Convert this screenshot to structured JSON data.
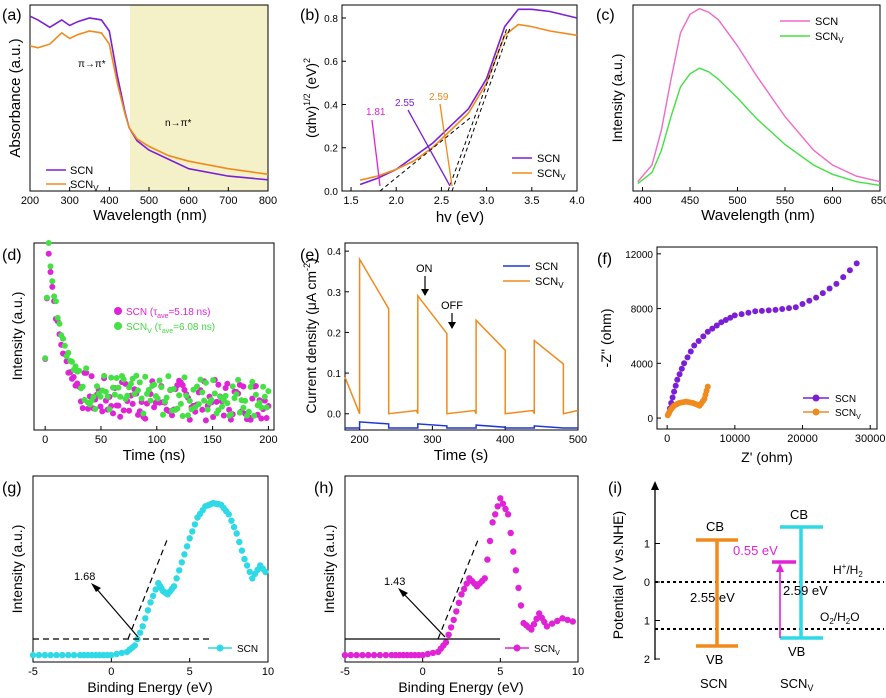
{
  "colors": {
    "scn": "#7b1fd6",
    "scnv": "#f08a1c",
    "scn_pl": "#f06ac8",
    "scnv_pl": "#44e044",
    "cyan": "#2fd9e6",
    "magenta": "#e023d6",
    "orange": "#f08a1c",
    "shade": "#f4f1c8",
    "black": "#000000"
  },
  "chart_data": [
    {
      "panel": "a",
      "type": "line",
      "panel_label": "(a)",
      "xlabel": "Wavelength (nm)",
      "ylabel": "Absorbance (a.u.)",
      "xlim": [
        200,
        800
      ],
      "ylim": [
        0,
        1
      ],
      "xticks": [
        200,
        300,
        400,
        500,
        600,
        700,
        800
      ],
      "shaded_range": [
        450,
        800
      ],
      "annotations": [
        {
          "text": "π→π*",
          "x": 310,
          "y": 0.73
        },
        {
          "text": "n→π*",
          "x": 540,
          "y": 0.35
        }
      ],
      "legend": [
        "SCN",
        "SCN_V"
      ],
      "series": [
        {
          "name": "SCN",
          "x": [
            200,
            220,
            250,
            280,
            300,
            320,
            350,
            380,
            400,
            420,
            440,
            450,
            470,
            500,
            550,
            600,
            700,
            800
          ],
          "y": [
            0.94,
            0.92,
            0.88,
            0.92,
            0.89,
            0.91,
            0.93,
            0.92,
            0.86,
            0.62,
            0.42,
            0.34,
            0.27,
            0.22,
            0.17,
            0.12,
            0.08,
            0.06
          ]
        },
        {
          "name": "SCN_V",
          "x": [
            200,
            220,
            250,
            280,
            300,
            320,
            350,
            380,
            400,
            420,
            440,
            450,
            470,
            500,
            550,
            600,
            700,
            800
          ],
          "y": [
            0.78,
            0.77,
            0.79,
            0.85,
            0.82,
            0.84,
            0.86,
            0.85,
            0.79,
            0.58,
            0.41,
            0.34,
            0.28,
            0.24,
            0.19,
            0.16,
            0.12,
            0.09
          ]
        }
      ]
    },
    {
      "panel": "b",
      "type": "line",
      "panel_label": "(b)",
      "xlabel": "hν (eV)",
      "ylabel": "(αhν)^1/2 (eV)^2",
      "xlim": [
        1.4,
        4.0
      ],
      "ylim": [
        0,
        0.86
      ],
      "xticks": [
        1.5,
        2.0,
        2.5,
        3.0,
        3.5,
        4.0
      ],
      "yticks": [
        0.0,
        0.2,
        0.4,
        0.6,
        0.8
      ],
      "legend": [
        "SCN",
        "SCN_V"
      ],
      "annotations": [
        {
          "text": "1.81",
          "x": 1.81,
          "color": "magenta"
        },
        {
          "text": "2.55",
          "x": 2.55,
          "color": "purple"
        },
        {
          "text": "2.59",
          "x": 2.59,
          "color": "orange"
        }
      ],
      "series": [
        {
          "name": "SCN",
          "x": [
            1.6,
            1.8,
            2.0,
            2.2,
            2.4,
            2.6,
            2.8,
            3.0,
            3.2,
            3.35,
            3.5,
            3.7,
            4.0
          ],
          "y": [
            0.03,
            0.06,
            0.1,
            0.16,
            0.22,
            0.3,
            0.38,
            0.52,
            0.76,
            0.84,
            0.84,
            0.83,
            0.8
          ]
        },
        {
          "name": "SCN_V",
          "x": [
            1.6,
            1.8,
            2.0,
            2.2,
            2.4,
            2.6,
            2.8,
            3.0,
            3.2,
            3.35,
            3.5,
            3.7,
            4.0
          ],
          "y": [
            0.05,
            0.07,
            0.1,
            0.14,
            0.2,
            0.28,
            0.36,
            0.5,
            0.72,
            0.77,
            0.76,
            0.74,
            0.72
          ]
        }
      ]
    },
    {
      "panel": "c",
      "type": "line",
      "panel_label": "(c)",
      "xlabel": "Wavelength (nm)",
      "ylabel": "Intensity (a.u.)",
      "xlim": [
        390,
        650
      ],
      "ylim": [
        0,
        1
      ],
      "xticks": [
        400,
        450,
        500,
        550,
        600,
        650
      ],
      "legend": [
        "SCN",
        "SCN_V"
      ],
      "series": [
        {
          "name": "SCN",
          "x": [
            395,
            410,
            420,
            430,
            440,
            450,
            460,
            470,
            480,
            500,
            520,
            550,
            580,
            600,
            625,
            650
          ],
          "y": [
            0.05,
            0.14,
            0.33,
            0.6,
            0.85,
            0.95,
            0.98,
            0.96,
            0.92,
            0.78,
            0.62,
            0.4,
            0.22,
            0.14,
            0.08,
            0.05
          ]
        },
        {
          "name": "SCN_V",
          "x": [
            395,
            410,
            420,
            430,
            440,
            450,
            460,
            470,
            480,
            500,
            520,
            550,
            580,
            600,
            625,
            650
          ],
          "y": [
            0.04,
            0.1,
            0.22,
            0.4,
            0.56,
            0.63,
            0.66,
            0.64,
            0.6,
            0.5,
            0.39,
            0.25,
            0.14,
            0.09,
            0.05,
            0.03
          ]
        }
      ]
    },
    {
      "panel": "d",
      "type": "scatter",
      "panel_label": "(d)",
      "xlabel": "Time (ns)",
      "ylabel": "Intensity (a.u.)",
      "xlim": [
        -10,
        205
      ],
      "ylim": [
        0,
        1
      ],
      "xticks": [
        0,
        50,
        100,
        150,
        200
      ],
      "legend": [
        "SCN  (τave=5.18 ns)",
        "SCNV (τave=6.08 ns)"
      ],
      "series": [
        {
          "name": "SCN",
          "tau": 5.18
        },
        {
          "name": "SCN_V",
          "tau": 6.08
        }
      ]
    },
    {
      "panel": "e",
      "type": "line",
      "panel_label": "(e)",
      "xlabel": "Time (s)",
      "ylabel": "Current density (μA cm⁻²)",
      "xlim": [
        180,
        500
      ],
      "ylim": [
        -0.04,
        0.42
      ],
      "xticks": [
        200,
        300,
        400,
        500
      ],
      "yticks": [
        0.0,
        0.1,
        0.2,
        0.3,
        0.4
      ],
      "legend": [
        "SCN",
        "SCN_V"
      ],
      "annotations": [
        {
          "text": "ON",
          "x": 283
        },
        {
          "text": "OFF",
          "x": 322
        }
      ],
      "series": [
        {
          "name": "SCN_V",
          "on": [
            200,
            280,
            360,
            440
          ],
          "off": [
            240,
            320,
            400,
            480
          ],
          "peaks": [
            0.38,
            0.29,
            0.23,
            0.18
          ]
        },
        {
          "name": "SCN",
          "on": [
            200,
            280,
            360,
            440
          ],
          "off": [
            240,
            320,
            400,
            480
          ],
          "peaks": [
            -0.02,
            -0.025,
            -0.028,
            -0.03
          ]
        }
      ]
    },
    {
      "panel": "f",
      "type": "scatter",
      "panel_label": "(f)",
      "xlabel": "Z' (ohm)",
      "ylabel": "-Z'' (ohm)",
      "xlim": [
        -1500,
        31000
      ],
      "ylim": [
        -800,
        12500
      ],
      "xticks": [
        0,
        10000,
        20000,
        30000
      ],
      "yticks": [
        0,
        4000,
        8000,
        12000
      ],
      "legend": [
        "SCN",
        "SCN_V"
      ],
      "series": [
        {
          "name": "SCN",
          "x": [
            200,
            800,
            1500,
            2500,
            4000,
            6000,
            8000,
            10000,
            13000,
            16000,
            19000,
            22000,
            25000,
            28000
          ],
          "y": [
            300,
            1500,
            2800,
            4000,
            5300,
            6300,
            7000,
            7500,
            7800,
            7900,
            8100,
            8800,
            9800,
            11300
          ]
        },
        {
          "name": "SCN_V",
          "x": [
            100,
            500,
            1000,
            1800,
            2800,
            3800,
            4800,
            5500,
            6000
          ],
          "y": [
            200,
            600,
            900,
            1100,
            1200,
            1100,
            900,
            1400,
            2300
          ]
        }
      ]
    },
    {
      "panel": "g",
      "type": "scatter",
      "panel_label": "(g)",
      "xlabel": "Binding Energy (eV)",
      "ylabel": "Intensity (a.u.)",
      "xlim": [
        -5,
        10
      ],
      "ylim": [
        0,
        1
      ],
      "xticks": [
        -5,
        0,
        5,
        10
      ],
      "legend": [
        "SCN"
      ],
      "annotations": [
        {
          "text": "1.68",
          "x": 1.68
        }
      ],
      "series": [
        {
          "name": "SCN",
          "x": [
            -5,
            -2,
            0,
            1,
            1.5,
            2,
            2.5,
            3,
            3.3,
            3.6,
            4,
            4.5,
            5,
            5.5,
            6,
            6.5,
            7,
            7.5,
            8,
            8.5,
            9,
            9.5,
            10
          ],
          "y": [
            0.02,
            0.02,
            0.02,
            0.04,
            0.08,
            0.2,
            0.35,
            0.47,
            0.42,
            0.4,
            0.45,
            0.6,
            0.75,
            0.88,
            0.95,
            0.97,
            0.96,
            0.9,
            0.78,
            0.62,
            0.5,
            0.58,
            0.52
          ]
        }
      ]
    },
    {
      "panel": "h",
      "type": "scatter",
      "panel_label": "(h)",
      "xlabel": "Binding Energy (eV)",
      "ylabel": "Intensity (a.u.)",
      "xlim": [
        -5,
        10
      ],
      "ylim": [
        0,
        1
      ],
      "xticks": [
        -5,
        0,
        5,
        10
      ],
      "legend": [
        "SCN_V"
      ],
      "annotations": [
        {
          "text": "1.43",
          "x": 1.43
        }
      ],
      "series": [
        {
          "name": "SCN_V",
          "x": [
            -5,
            -2,
            0,
            1,
            1.5,
            2,
            2.5,
            3,
            3.5,
            4,
            4.5,
            5,
            5.5,
            6,
            6.5,
            7,
            7.5,
            8,
            9,
            10
          ],
          "y": [
            0.02,
            0.02,
            0.02,
            0.04,
            0.1,
            0.24,
            0.4,
            0.5,
            0.45,
            0.5,
            0.85,
            1.0,
            0.9,
            0.55,
            0.22,
            0.18,
            0.28,
            0.2,
            0.25,
            0.22
          ]
        }
      ]
    },
    {
      "panel": "i",
      "type": "diagram",
      "panel_label": "(i)",
      "ylabel": "Potential (V vs.NHE)",
      "ylim": [
        2.0,
        -2.0
      ],
      "yticks": [
        -1,
        0,
        1,
        2
      ],
      "refs": [
        {
          "label": "H⁺/H₂",
          "value": 0.0
        },
        {
          "label": "O₂/H₂O",
          "value": 1.23
        }
      ],
      "bands": [
        {
          "name": "SCN",
          "CB_label": "CB",
          "VB_label": "VB",
          "cb": -1.05,
          "vb": 1.5,
          "gap": "2.55 eV",
          "color": "orange"
        },
        {
          "name": "SCN_V",
          "CB_label": "CB",
          "VB_label": "VB",
          "cb": -1.26,
          "vb": 1.33,
          "gap": "2.59 eV",
          "mid": -0.55,
          "mid_label": "0.55 eV",
          "color": "cyan"
        }
      ]
    }
  ],
  "labels": {
    "scn": "SCN",
    "scnv_base": "SCN",
    "scnv_sub": "V",
    "pi": "π→π*",
    "npi": "n→π*",
    "b_ylabel": "(αhv)",
    "b_ylabel_sup": "1/2",
    "b_ylabel_end": " (eV)",
    "b_ylabel_sup2": "2",
    "hv": "hv (eV)",
    "d_scn": "SCN   (τ",
    "d_ave": "ave",
    "d_scn_tail": "=5.18 ns)",
    "d_scnv": "SCN",
    "d_scnv_tail": " (τ",
    "d_scnv_tail2": "=6.08 ns)",
    "e_ylabel": "Current density (μA cm",
    "e_ylabel_sup": "-2",
    "e_ylabel_end": ")",
    "on": "ON",
    "off": "OFF",
    "f_ylabel": "-Z'' (ohm)",
    "f_xlabel": "Z' (ohm)",
    "be": "Binding Energy (eV)",
    "g_ann": "1.68",
    "h_ann": "1.43",
    "i_ylabel": "Potential (V vs.NHE)",
    "cb": "CB",
    "vb": "VB",
    "gap1": "2.55 eV",
    "gap2": "2.59 eV",
    "mid": "0.55 eV",
    "hh": "H",
    "hh_sup": "+",
    "hh_end": "/H",
    "hh_sub": "2",
    "oh": "O",
    "oh_sub": "2",
    "oh_end": "/H",
    "oh_sub2": "2",
    "oh_tail": "O",
    "absorbance": "Absorbance (a.u.)",
    "wavelength": "Wavelength (nm)",
    "intensity": "Intensity (a.u.)",
    "time_ns": "Time (ns)",
    "time_s": "Time (s)",
    "b181": "1.81",
    "b255": "2.55",
    "b259": "2.59",
    "pa": "(a)",
    "pb": "(b)",
    "pc": "(c)",
    "pd": "(d)",
    "pe": "(e)",
    "pf": "(f)",
    "pg": "(g)",
    "ph": "(h)",
    "pi_lbl": "(i)"
  }
}
